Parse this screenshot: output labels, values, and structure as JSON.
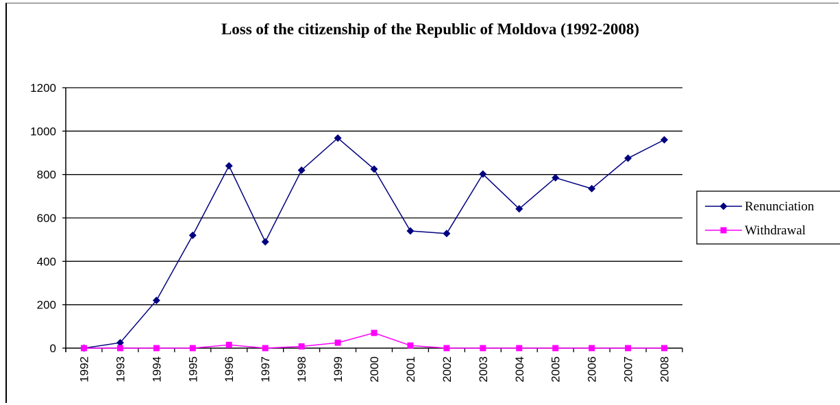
{
  "chart_data": {
    "type": "line",
    "title": "Loss of the citizenship of the Republic of Moldova (1992-2008)",
    "xlabel": "",
    "ylabel": "",
    "categories": [
      "1992",
      "1993",
      "1994",
      "1995",
      "1996",
      "1997",
      "1998",
      "1999",
      "2000",
      "2001",
      "2002",
      "2003",
      "2004",
      "2005",
      "2006",
      "2007",
      "2008"
    ],
    "ylim": [
      0,
      1200
    ],
    "yticks": [
      0,
      200,
      400,
      600,
      800,
      1000,
      1200
    ],
    "grid": true,
    "legend_position": "right",
    "series": [
      {
        "name": "Renunciation",
        "color": "#000080",
        "marker": "diamond",
        "values": [
          0,
          25,
          220,
          520,
          840,
          490,
          820,
          968,
          825,
          540,
          528,
          802,
          642,
          785,
          735,
          875,
          960
        ]
      },
      {
        "name": "Withdrawal",
        "color": "#ff00ff",
        "marker": "square",
        "values": [
          0,
          0,
          0,
          0,
          15,
          0,
          8,
          25,
          70,
          12,
          0,
          0,
          0,
          0,
          0,
          0,
          0
        ]
      }
    ]
  }
}
